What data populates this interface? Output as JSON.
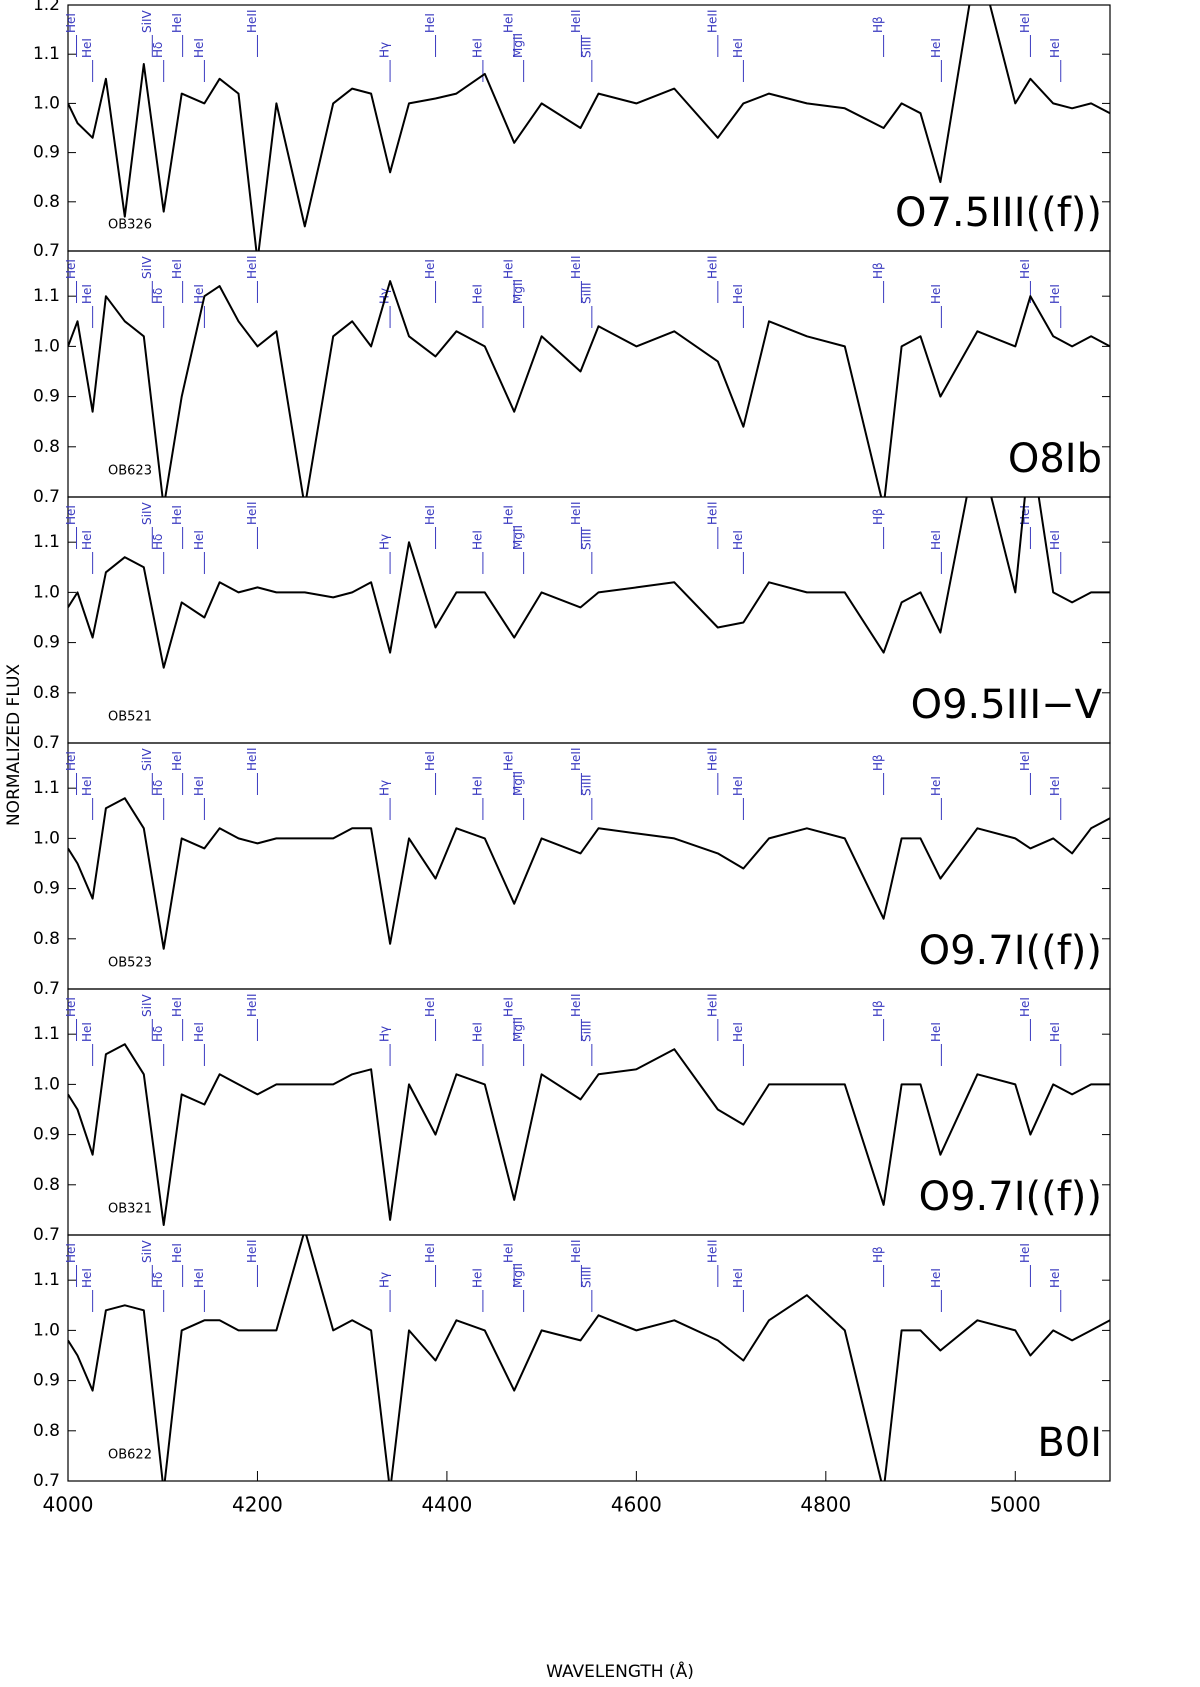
{
  "xlabel": "WAVELENGTH (Å)",
  "ylabel": "NORMALIZED FLUX",
  "line_ids": [
    {
      "label": "HeI",
      "x": 4009
    },
    {
      "label": "HeI",
      "x": 4026
    },
    {
      "label": "SiIV",
      "x": 4089
    },
    {
      "label": "Hδ",
      "x": 4101
    },
    {
      "label": "HeI",
      "x": 4121
    },
    {
      "label": "HeI",
      "x": 4144
    },
    {
      "label": "HeII",
      "x": 4200
    },
    {
      "label": "Hγ",
      "x": 4340
    },
    {
      "label": "HeI",
      "x": 4388
    },
    {
      "label": "HeI",
      "x": 4438
    },
    {
      "label": "HeI",
      "x": 4471
    },
    {
      "label": "MgII",
      "x": 4481
    },
    {
      "label": "HeII",
      "x": 4542
    },
    {
      "label": "SiIII",
      "x": 4553
    },
    {
      "label": "HeII",
      "x": 4686
    },
    {
      "label": "HeI",
      "x": 4713
    },
    {
      "label": "Hβ",
      "x": 4861
    },
    {
      "label": "HeI",
      "x": 4922
    },
    {
      "label": "HeI",
      "x": 5016
    },
    {
      "label": "HeI",
      "x": 5048
    }
  ],
  "chart_data": [
    {
      "type": "line",
      "star": "OB326",
      "spectral_type": "O7.5III((f))",
      "color": "#000000",
      "x": [
        4000,
        4010,
        4026,
        4040,
        4060,
        4080,
        4101,
        4120,
        4144,
        4160,
        4180,
        4200,
        4220,
        4250,
        4280,
        4300,
        4320,
        4340,
        4360,
        4388,
        4410,
        4440,
        4471,
        4500,
        4541,
        4560,
        4600,
        4640,
        4686,
        4713,
        4740,
        4780,
        4820,
        4861,
        4880,
        4900,
        4921,
        4960,
        5000,
        5016,
        5040,
        5060,
        5080,
        5100
      ],
      "values": [
        1.0,
        0.96,
        0.93,
        1.05,
        0.77,
        1.08,
        0.78,
        1.02,
        1.0,
        1.05,
        1.02,
        0.68,
        1.0,
        0.75,
        1.0,
        1.03,
        1.02,
        0.86,
        1.0,
        1.01,
        1.02,
        1.06,
        0.92,
        1.0,
        0.95,
        1.02,
        1.0,
        1.03,
        0.93,
        1.0,
        1.02,
        1.0,
        0.99,
        0.95,
        1.0,
        0.98,
        0.84,
        1.3,
        1.0,
        1.05,
        1.0,
        0.99,
        1.0,
        0.98
      ],
      "xlim": [
        4000,
        5100
      ],
      "ylim": [
        0.7,
        1.2
      ],
      "yticks": [
        0.7,
        0.8,
        0.9,
        {
          "value": 1,
          "label": "1.0"
        },
        1.1,
        1.2
      ]
    },
    {
      "type": "line",
      "star": "OB623",
      "spectral_type": "O8Ib",
      "color": "#000000",
      "x": [
        4000,
        4010,
        4026,
        4040,
        4060,
        4080,
        4101,
        4120,
        4144,
        4160,
        4180,
        4200,
        4220,
        4250,
        4280,
        4300,
        4320,
        4340,
        4360,
        4388,
        4410,
        4440,
        4471,
        4500,
        4541,
        4560,
        4600,
        4640,
        4686,
        4713,
        4740,
        4780,
        4820,
        4861,
        4880,
        4900,
        4921,
        4960,
        5000,
        5016,
        5040,
        5060,
        5080,
        5100
      ],
      "values": [
        1.0,
        1.05,
        0.87,
        1.1,
        1.05,
        1.02,
        0.68,
        0.9,
        1.1,
        1.12,
        1.05,
        1.0,
        1.03,
        0.68,
        1.02,
        1.05,
        1.0,
        1.13,
        1.02,
        0.98,
        1.03,
        1.0,
        0.87,
        1.02,
        0.95,
        1.04,
        1.0,
        1.03,
        0.97,
        0.84,
        1.05,
        1.02,
        1.0,
        0.68,
        1.0,
        1.02,
        0.9,
        1.03,
        1.0,
        1.1,
        1.02,
        1.0,
        1.02,
        1.0
      ],
      "xlim": [
        4000,
        5100
      ],
      "ylim": [
        0.7,
        1.19
      ],
      "yticks": [
        0.7,
        0.8,
        0.9,
        {
          "value": 1,
          "label": "1.0"
        },
        1.1
      ]
    },
    {
      "type": "line",
      "star": "OB521",
      "spectral_type": "O9.5III−V",
      "color": "#000000",
      "x": [
        4000,
        4010,
        4026,
        4040,
        4060,
        4080,
        4101,
        4120,
        4144,
        4160,
        4180,
        4200,
        4220,
        4250,
        4280,
        4300,
        4320,
        4340,
        4360,
        4388,
        4410,
        4440,
        4471,
        4500,
        4541,
        4560,
        4600,
        4640,
        4686,
        4713,
        4740,
        4780,
        4820,
        4861,
        4880,
        4900,
        4921,
        4960,
        5000,
        5016,
        5040,
        5060,
        5080,
        5100
      ],
      "values": [
        0.97,
        1.0,
        0.91,
        1.04,
        1.07,
        1.05,
        0.85,
        0.98,
        0.95,
        1.02,
        1.0,
        1.01,
        1.0,
        1.0,
        0.99,
        1.0,
        1.02,
        0.88,
        1.1,
        0.93,
        1.0,
        1.0,
        0.91,
        1.0,
        0.97,
        1.0,
        1.01,
        1.02,
        0.93,
        0.94,
        1.02,
        1.0,
        1.0,
        0.88,
        0.98,
        1.0,
        0.92,
        1.3,
        1.0,
        1.3,
        1.0,
        0.98,
        1.0,
        1.0
      ],
      "xlim": [
        4000,
        5100
      ],
      "ylim": [
        0.7,
        1.19
      ],
      "yticks": [
        0.7,
        0.8,
        0.9,
        {
          "value": 1,
          "label": "1.0"
        },
        1.1
      ]
    },
    {
      "type": "line",
      "star": "OB523",
      "spectral_type": "O9.7I((f))",
      "color": "#000000",
      "x": [
        4000,
        4010,
        4026,
        4040,
        4060,
        4080,
        4101,
        4120,
        4144,
        4160,
        4180,
        4200,
        4220,
        4250,
        4280,
        4300,
        4320,
        4340,
        4360,
        4388,
        4410,
        4440,
        4471,
        4500,
        4541,
        4560,
        4600,
        4640,
        4686,
        4713,
        4740,
        4780,
        4820,
        4861,
        4880,
        4900,
        4921,
        4960,
        5000,
        5016,
        5040,
        5060,
        5080,
        5100
      ],
      "values": [
        0.98,
        0.95,
        0.88,
        1.06,
        1.08,
        1.02,
        0.78,
        1.0,
        0.98,
        1.02,
        1.0,
        0.99,
        1.0,
        1.0,
        1.0,
        1.02,
        1.02,
        0.79,
        1.0,
        0.92,
        1.02,
        1.0,
        0.87,
        1.0,
        0.97,
        1.02,
        1.01,
        1.0,
        0.97,
        0.94,
        1.0,
        1.02,
        1.0,
        0.84,
        1.0,
        1.0,
        0.92,
        1.02,
        1.0,
        0.98,
        1.0,
        0.97,
        1.02,
        1.04
      ],
      "xlim": [
        4000,
        5100
      ],
      "ylim": [
        0.7,
        1.19
      ],
      "yticks": [
        0.7,
        0.8,
        0.9,
        {
          "value": 1,
          "label": "1.0"
        },
        1.1
      ]
    },
    {
      "type": "line",
      "star": "OB321",
      "spectral_type": "O9.7I((f))",
      "color": "#000000",
      "x": [
        4000,
        4010,
        4026,
        4040,
        4060,
        4080,
        4101,
        4120,
        4144,
        4160,
        4180,
        4200,
        4220,
        4250,
        4280,
        4300,
        4320,
        4340,
        4360,
        4388,
        4410,
        4440,
        4471,
        4500,
        4541,
        4560,
        4600,
        4640,
        4686,
        4713,
        4740,
        4780,
        4820,
        4861,
        4880,
        4900,
        4921,
        4960,
        5000,
        5016,
        5040,
        5060,
        5080,
        5100
      ],
      "values": [
        0.98,
        0.95,
        0.86,
        1.06,
        1.08,
        1.02,
        0.72,
        0.98,
        0.96,
        1.02,
        1.0,
        0.98,
        1.0,
        1.0,
        1.0,
        1.02,
        1.03,
        0.73,
        1.0,
        0.9,
        1.02,
        1.0,
        0.77,
        1.02,
        0.97,
        1.02,
        1.03,
        1.07,
        0.95,
        0.92,
        1.0,
        1.0,
        1.0,
        0.76,
        1.0,
        1.0,
        0.86,
        1.02,
        1.0,
        0.9,
        1.0,
        0.98,
        1.0,
        1.0
      ],
      "xlim": [
        4000,
        5100
      ],
      "ylim": [
        0.7,
        1.19
      ],
      "yticks": [
        0.7,
        0.8,
        0.9,
        {
          "value": 1,
          "label": "1.0"
        },
        1.1
      ]
    },
    {
      "type": "line",
      "star": "OB622",
      "spectral_type": "B0I",
      "color": "#000000",
      "x": [
        4000,
        4010,
        4026,
        4040,
        4060,
        4080,
        4101,
        4120,
        4144,
        4160,
        4180,
        4200,
        4220,
        4250,
        4280,
        4300,
        4320,
        4340,
        4360,
        4388,
        4410,
        4440,
        4471,
        4500,
        4541,
        4560,
        4600,
        4640,
        4686,
        4713,
        4740,
        4780,
        4820,
        4861,
        4880,
        4900,
        4921,
        4960,
        5000,
        5016,
        5040,
        5060,
        5080,
        5100
      ],
      "values": [
        0.98,
        0.95,
        0.88,
        1.04,
        1.05,
        1.04,
        0.68,
        1.0,
        1.02,
        1.02,
        1.0,
        1.0,
        1.0,
        1.2,
        1.0,
        1.02,
        1.0,
        0.68,
        1.0,
        0.94,
        1.02,
        1.0,
        0.88,
        1.0,
        0.98,
        1.03,
        1.0,
        1.02,
        0.98,
        0.94,
        1.02,
        1.07,
        1.0,
        0.68,
        1.0,
        1.0,
        0.96,
        1.02,
        1.0,
        0.95,
        1.0,
        0.98,
        1.0,
        1.02
      ],
      "xlim": [
        4000,
        5100
      ],
      "ylim": [
        0.7,
        1.19
      ],
      "yticks": [
        0.7,
        0.8,
        0.9,
        {
          "value": 1,
          "label": "1.0"
        },
        1.1
      ],
      "xticks": [
        4000,
        4200,
        4400,
        4600,
        4800,
        5000
      ]
    }
  ]
}
